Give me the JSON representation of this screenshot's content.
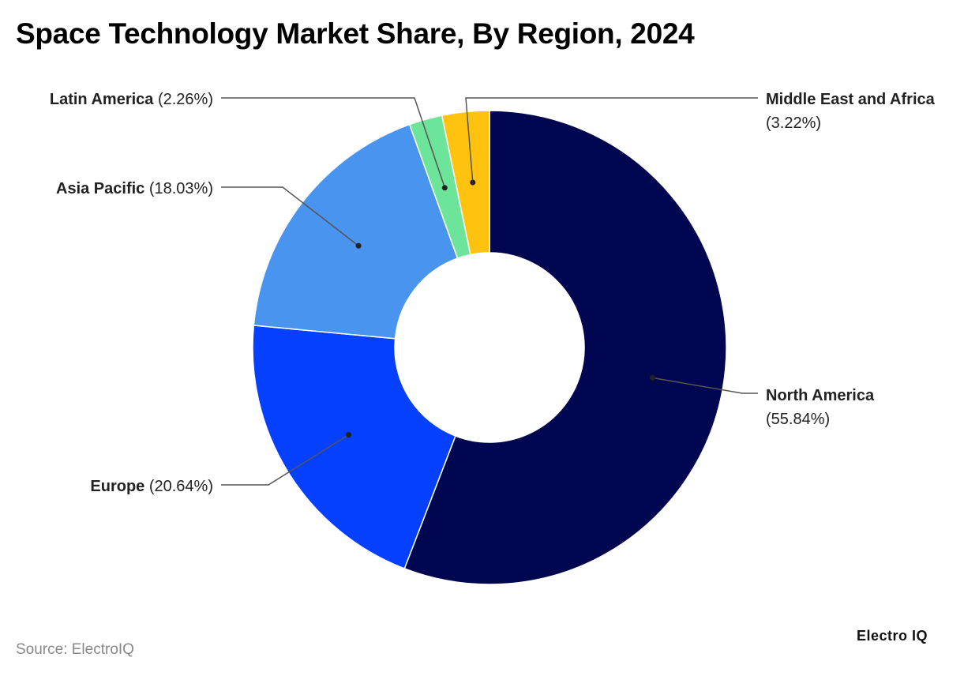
{
  "title": "Space Technology Market Share, By Region, 2024",
  "source": "Source: ElectroIQ",
  "logo": "Electro IQ",
  "chart_data": {
    "type": "pie",
    "variant": "donut",
    "title": "Space Technology Market Share, By Region, 2024",
    "slices": [
      {
        "name": "North America",
        "value": 55.84,
        "label": "(55.84%)",
        "color": "#000650"
      },
      {
        "name": "Europe",
        "value": 20.64,
        "label": "(20.64%)",
        "color": "#0540FF"
      },
      {
        "name": "Asia Pacific",
        "value": 18.03,
        "label": "(18.03%)",
        "color": "#4894EE"
      },
      {
        "name": "Latin America",
        "value": 2.26,
        "label": "(2.26%)",
        "color": "#6CE59A"
      },
      {
        "name": "Middle East and Africa",
        "value": 3.22,
        "label": "(3.22%)",
        "color": "#FFC20E"
      }
    ]
  }
}
